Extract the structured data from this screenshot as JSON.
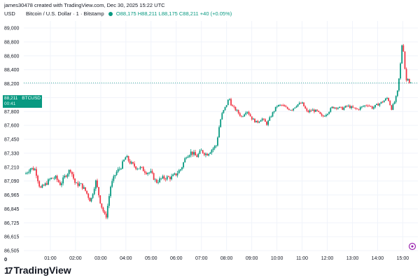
{
  "header": {
    "created_line": "james30478 created with TradingView.com, Dec 30, 2025 15:22 UTC",
    "currency": "USD",
    "symbol_line": "Bitcoin / U.S. Dollar · 1 · Bitstamp",
    "ohlc": {
      "o": "O88,175",
      "h": "H88,211",
      "l": "L88,175",
      "c": "C88,211",
      "change": "+40 (+0.05%)"
    }
  },
  "price_tag": {
    "price": "88,211",
    "symbol": "BTCUSD",
    "countdown": "00:41"
  },
  "footer": {
    "logo_mark": "17",
    "logo_text": "TradingView",
    "zero_label": "0"
  },
  "colors": {
    "up": "#089981",
    "down": "#f23645",
    "grid": "#f0f3fa",
    "price_line": "#089981",
    "axis_text": "#131722"
  },
  "chart_data": {
    "type": "candlestick",
    "title": "Bitcoin / U.S. Dollar",
    "xlabel": "",
    "ylabel": "USD",
    "y_ticks": [
      89000,
      88800,
      88600,
      88400,
      88200,
      88000,
      87800,
      87600,
      87450,
      87330,
      87210,
      87090,
      86965,
      86845,
      86725,
      86615,
      86505
    ],
    "y_tick_labels": [
      "89,000",
      "88,800",
      "88,600",
      "88,400",
      "88,200",
      "88,000",
      "87,800",
      "87,600",
      "87,450",
      "87,330",
      "87,210",
      "87,090",
      "86,965",
      "86,845",
      "86,725",
      "86,615",
      "86,505"
    ],
    "x_ticks": [
      "01:00",
      "02:00",
      "03:00",
      "04:00",
      "05:00",
      "06:00",
      "07:00",
      "08:00",
      "09:00",
      "10:00",
      "11:00",
      "12:00",
      "13:00",
      "14:00",
      "15:00"
    ],
    "x_tick_hours": [
      1,
      2,
      3,
      4,
      5,
      6,
      7,
      8,
      9,
      10,
      11,
      12,
      13,
      14,
      15
    ],
    "x_start_hour": 0.0,
    "x_end_hour": 15.35,
    "path_points": [
      {
        "t": 0.0,
        "p": 87150
      },
      {
        "t": 0.2,
        "p": 87200
      },
      {
        "t": 0.4,
        "p": 87190
      },
      {
        "t": 0.6,
        "p": 87020
      },
      {
        "t": 0.8,
        "p": 87060
      },
      {
        "t": 1.0,
        "p": 87110
      },
      {
        "t": 1.2,
        "p": 87120
      },
      {
        "t": 1.4,
        "p": 87060
      },
      {
        "t": 1.6,
        "p": 87140
      },
      {
        "t": 1.8,
        "p": 87190
      },
      {
        "t": 2.0,
        "p": 87060
      },
      {
        "t": 2.2,
        "p": 87060
      },
      {
        "t": 2.4,
        "p": 87000
      },
      {
        "t": 2.6,
        "p": 86910
      },
      {
        "t": 2.8,
        "p": 87090
      },
      {
        "t": 3.0,
        "p": 86890
      },
      {
        "t": 3.2,
        "p": 86760
      },
      {
        "t": 3.4,
        "p": 87050
      },
      {
        "t": 3.6,
        "p": 87160
      },
      {
        "t": 3.8,
        "p": 87210
      },
      {
        "t": 4.0,
        "p": 87300
      },
      {
        "t": 4.2,
        "p": 87240
      },
      {
        "t": 4.4,
        "p": 87210
      },
      {
        "t": 4.6,
        "p": 87200
      },
      {
        "t": 4.8,
        "p": 87170
      },
      {
        "t": 5.0,
        "p": 87160
      },
      {
        "t": 5.2,
        "p": 87080
      },
      {
        "t": 5.4,
        "p": 87110
      },
      {
        "t": 5.6,
        "p": 87120
      },
      {
        "t": 5.8,
        "p": 87120
      },
      {
        "t": 6.0,
        "p": 87150
      },
      {
        "t": 6.2,
        "p": 87200
      },
      {
        "t": 6.4,
        "p": 87310
      },
      {
        "t": 6.6,
        "p": 87340
      },
      {
        "t": 6.8,
        "p": 87300
      },
      {
        "t": 7.0,
        "p": 87350
      },
      {
        "t": 7.2,
        "p": 87320
      },
      {
        "t": 7.4,
        "p": 87360
      },
      {
        "t": 7.6,
        "p": 87400
      },
      {
        "t": 7.8,
        "p": 87750
      },
      {
        "t": 8.0,
        "p": 87900
      },
      {
        "t": 8.1,
        "p": 88000
      },
      {
        "t": 8.2,
        "p": 87880
      },
      {
        "t": 8.4,
        "p": 87810
      },
      {
        "t": 8.6,
        "p": 87720
      },
      {
        "t": 8.8,
        "p": 87820
      },
      {
        "t": 9.0,
        "p": 87700
      },
      {
        "t": 9.2,
        "p": 87640
      },
      {
        "t": 9.4,
        "p": 87700
      },
      {
        "t": 9.6,
        "p": 87620
      },
      {
        "t": 9.8,
        "p": 87760
      },
      {
        "t": 10.0,
        "p": 87880
      },
      {
        "t": 10.2,
        "p": 87890
      },
      {
        "t": 10.4,
        "p": 87840
      },
      {
        "t": 10.6,
        "p": 87830
      },
      {
        "t": 10.8,
        "p": 87900
      },
      {
        "t": 11.0,
        "p": 87920
      },
      {
        "t": 11.2,
        "p": 87790
      },
      {
        "t": 11.4,
        "p": 87820
      },
      {
        "t": 11.6,
        "p": 87800
      },
      {
        "t": 11.8,
        "p": 87720
      },
      {
        "t": 12.0,
        "p": 87780
      },
      {
        "t": 12.2,
        "p": 87860
      },
      {
        "t": 12.4,
        "p": 87860
      },
      {
        "t": 12.6,
        "p": 87840
      },
      {
        "t": 12.8,
        "p": 87880
      },
      {
        "t": 13.0,
        "p": 87850
      },
      {
        "t": 13.2,
        "p": 87830
      },
      {
        "t": 13.4,
        "p": 87870
      },
      {
        "t": 13.6,
        "p": 87900
      },
      {
        "t": 13.8,
        "p": 87850
      },
      {
        "t": 14.0,
        "p": 87900
      },
      {
        "t": 14.2,
        "p": 87940
      },
      {
        "t": 14.4,
        "p": 88000
      },
      {
        "t": 14.55,
        "p": 87840
      },
      {
        "t": 14.7,
        "p": 87960
      },
      {
        "t": 14.8,
        "p": 88100
      },
      {
        "t": 14.9,
        "p": 88450
      },
      {
        "t": 14.98,
        "p": 88820
      },
      {
        "t": 15.05,
        "p": 88600
      },
      {
        "t": 15.12,
        "p": 88230
      },
      {
        "t": 15.2,
        "p": 88290
      },
      {
        "t": 15.28,
        "p": 88200
      },
      {
        "t": 15.35,
        "p": 88211
      }
    ],
    "last_price": 88211,
    "grid": true
  }
}
